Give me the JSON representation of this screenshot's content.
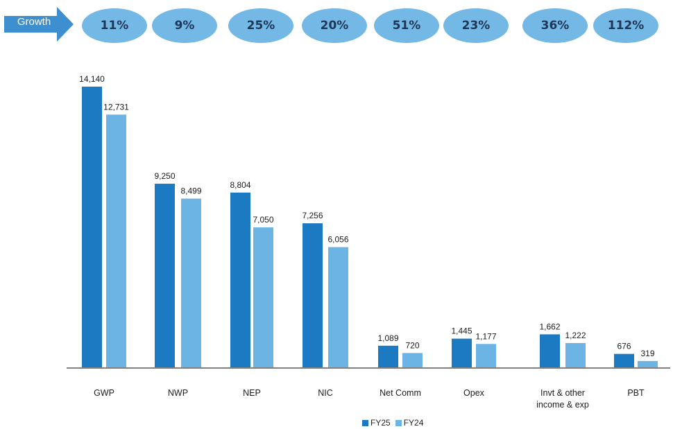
{
  "growth": {
    "label": "Growth",
    "values": [
      "11%",
      "9%",
      "25%",
      "20%",
      "51%",
      "23%",
      "36%",
      "112%"
    ]
  },
  "colors": {
    "FY25": "#1c7ac2",
    "FY24": "#6cb4e4",
    "growth_pill": "#74b8e6",
    "growth_arrow": "#3d8fcf",
    "growth_text": "#1f3657",
    "axis": "#808080"
  },
  "legend": [
    "FY25",
    "FY24"
  ],
  "chart_data": {
    "type": "bar",
    "categories": [
      "GWP",
      "NWP",
      "NEP",
      "NIC",
      "Net Comm",
      "Opex",
      "Invt & other income & exp",
      "PBT"
    ],
    "series": [
      {
        "name": "FY25",
        "values": [
          14140,
          9250,
          8804,
          7256,
          1089,
          1445,
          1662,
          676
        ]
      },
      {
        "name": "FY24",
        "values": [
          12731,
          8499,
          7050,
          6056,
          720,
          1177,
          1222,
          319
        ]
      }
    ],
    "data_labels": [
      [
        "14,140",
        "9,250",
        "8,804",
        "7,256",
        "1,089",
        "1,445",
        "1,662",
        "676"
      ],
      [
        "12,731",
        "8,499",
        "7,050",
        "6,056",
        "720",
        "1,177",
        "1,222",
        "319"
      ]
    ],
    "title": "",
    "xlabel": "",
    "ylabel": "",
    "ylim": [
      0,
      14140
    ],
    "grid": false,
    "legend_position": "bottom"
  }
}
